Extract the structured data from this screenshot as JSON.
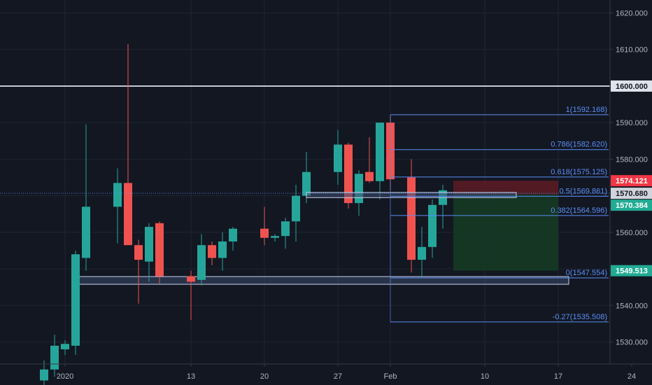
{
  "colors": {
    "background": "#131722",
    "grid": "#1f2433",
    "axis_text": "#b2b5be",
    "up": "#26a69a",
    "down": "#ef5350",
    "fib": "#5b8ef5",
    "horizontal_line": "#c7c9d1",
    "support_box": "#c7d3f0",
    "stop_zone": "#5a1c25",
    "target_zone": "#153a23"
  },
  "chart_data": {
    "type": "candlestick",
    "title": "",
    "xlabel": "",
    "ylabel": "",
    "ylim": [
      1524,
      1622
    ],
    "grid": true,
    "price_ticks": [
      1530,
      1540,
      1550,
      1560,
      1570,
      1580,
      1590,
      1600,
      1610,
      1620
    ],
    "price_tick_labels": [
      "1530.000",
      "1540.000",
      "1550.000",
      "1560.000",
      "1570.000",
      "1580.000",
      "1590.000",
      "1600.000",
      "1610.000",
      "1620.000"
    ],
    "date_ticks": [
      {
        "label": "2020",
        "date": "2020-01-01"
      },
      {
        "label": "13",
        "date": "2020-01-13"
      },
      {
        "label": "20",
        "date": "2020-01-20"
      },
      {
        "label": "27",
        "date": "2020-01-27"
      },
      {
        "label": "Feb",
        "date": "2020-02-01"
      },
      {
        "label": "10",
        "date": "2020-02-10"
      },
      {
        "label": "17",
        "date": "2020-02-17"
      },
      {
        "label": "24",
        "date": "2020-02-24"
      }
    ],
    "candles": [
      {
        "date": "2019-12-30",
        "open": 1519.5,
        "high": 1525.0,
        "low": 1516.0,
        "close": 1522.5
      },
      {
        "date": "2019-12-31",
        "open": 1522.5,
        "high": 1532.0,
        "low": 1520.5,
        "close": 1529.0
      },
      {
        "date": "2020-01-01",
        "open": 1528.0,
        "high": 1530.5,
        "low": 1526.5,
        "close": 1529.5
      },
      {
        "date": "2020-01-02",
        "open": 1529.0,
        "high": 1555.0,
        "low": 1526.5,
        "close": 1554.0
      },
      {
        "date": "2020-01-03",
        "open": 1553.0,
        "high": 1589.5,
        "low": 1549.5,
        "close": 1567.0
      },
      {
        "date": "2020-01-06",
        "open": 1567.0,
        "high": 1577.5,
        "low": 1557.0,
        "close": 1573.5
      },
      {
        "date": "2020-01-07",
        "open": 1573.5,
        "high": 1611.5,
        "low": 1557.0,
        "close": 1556.5
      },
      {
        "date": "2020-01-08",
        "open": 1556.5,
        "high": 1558.0,
        "low": 1540.5,
        "close": 1552.5
      },
      {
        "date": "2020-01-09",
        "open": 1552.0,
        "high": 1562.5,
        "low": 1546.5,
        "close": 1561.5
      },
      {
        "date": "2020-01-10",
        "open": 1562.5,
        "high": 1563.0,
        "low": 1546.0,
        "close": 1548.0
      },
      {
        "date": "2020-01-13",
        "open": 1548.0,
        "high": 1549.5,
        "low": 1536.0,
        "close": 1546.5
      },
      {
        "date": "2020-01-14",
        "open": 1547.0,
        "high": 1559.5,
        "low": 1545.5,
        "close": 1556.5
      },
      {
        "date": "2020-01-15",
        "open": 1556.5,
        "high": 1557.5,
        "low": 1551.0,
        "close": 1553.0
      },
      {
        "date": "2020-01-16",
        "open": 1553.0,
        "high": 1560.0,
        "low": 1549.5,
        "close": 1557.5
      },
      {
        "date": "2020-01-17",
        "open": 1557.5,
        "high": 1561.5,
        "low": 1555.0,
        "close": 1561.0
      },
      {
        "date": "2020-01-20",
        "open": 1561.0,
        "high": 1567.0,
        "low": 1556.5,
        "close": 1558.5
      },
      {
        "date": "2020-01-21",
        "open": 1558.5,
        "high": 1559.5,
        "low": 1557.5,
        "close": 1559.0
      },
      {
        "date": "2020-01-22",
        "open": 1559.0,
        "high": 1564.0,
        "low": 1555.5,
        "close": 1563.0
      },
      {
        "date": "2020-01-23",
        "open": 1563.0,
        "high": 1573.0,
        "low": 1557.5,
        "close": 1570.0
      },
      {
        "date": "2020-01-24",
        "open": 1570.0,
        "high": 1582.0,
        "low": 1568.0,
        "close": 1576.5
      },
      {
        "date": "2020-01-27",
        "open": 1576.5,
        "high": 1588.0,
        "low": 1573.0,
        "close": 1584.0
      },
      {
        "date": "2020-01-28",
        "open": 1584.0,
        "high": 1584.5,
        "low": 1566.5,
        "close": 1568.0
      },
      {
        "date": "2020-01-29",
        "open": 1568.0,
        "high": 1577.0,
        "low": 1564.5,
        "close": 1576.0
      },
      {
        "date": "2020-01-30",
        "open": 1576.5,
        "high": 1586.0,
        "low": 1573.5,
        "close": 1574.0
      },
      {
        "date": "2020-01-31",
        "open": 1574.0,
        "high": 1590.0,
        "low": 1569.0,
        "close": 1590.0
      },
      {
        "date": "2020-02-01",
        "open": 1590.0,
        "high": 1592.0,
        "low": 1571.5,
        "close": 1574.5
      },
      {
        "date": "2020-02-03",
        "open": 1575.0,
        "high": 1580.0,
        "low": 1549.0,
        "close": 1552.5
      },
      {
        "date": "2020-02-04",
        "open": 1552.5,
        "high": 1561.5,
        "low": 1547.5,
        "close": 1556.0
      },
      {
        "date": "2020-02-05",
        "open": 1556.0,
        "high": 1569.0,
        "low": 1553.0,
        "close": 1567.5
      },
      {
        "date": "2020-02-06",
        "open": 1567.5,
        "high": 1573.0,
        "low": 1561.0,
        "close": 1571.5
      }
    ],
    "horizontal_line": {
      "price": 1600.0,
      "label": "1600.000"
    },
    "current_price_line": {
      "price": 1570.68
    },
    "support_zone": {
      "from_date": "2020-01-02",
      "to_date": "2020-02-18",
      "price_low": 1545.8,
      "price_high": 1547.9
    },
    "resistance_box": {
      "from_date": "2020-01-24",
      "to_date": "2020-02-13",
      "price_low": 1569.5,
      "price_high": 1570.9
    },
    "position": {
      "from_date": "2020-02-07",
      "to_date": "2020-02-17",
      "entry": 1570.384,
      "stop": 1574.121,
      "target": 1549.513
    },
    "fibonacci": {
      "from_date": "2020-02-01",
      "to_date": "2020-02-27",
      "levels": [
        {
          "label": "1(1592.168)",
          "price": 1592.168
        },
        {
          "label": "0.786(1582.620)",
          "price": 1582.62
        },
        {
          "label": "0.618(1575.125)",
          "price": 1575.125
        },
        {
          "label": "0.5(1569.861)",
          "price": 1569.861
        },
        {
          "label": "0.382(1564.596)",
          "price": 1564.596
        },
        {
          "label": "0(1547.554)",
          "price": 1547.554
        },
        {
          "label": "-0.27(1535.508)",
          "price": 1535.508
        }
      ]
    },
    "price_badges": [
      {
        "label": "1574.121",
        "price": 1574.121,
        "color": "#f23645",
        "text_style": "light"
      },
      {
        "label": "1570.680",
        "price": 1570.68,
        "color": "#d1d4dc",
        "text_style": "dark"
      },
      {
        "label": "1570.384",
        "price": 1570.384,
        "color": "#22ab94",
        "text_style": "light"
      },
      {
        "label": "1549.513",
        "price": 1549.513,
        "color": "#22ab94",
        "text_style": "light"
      }
    ]
  }
}
